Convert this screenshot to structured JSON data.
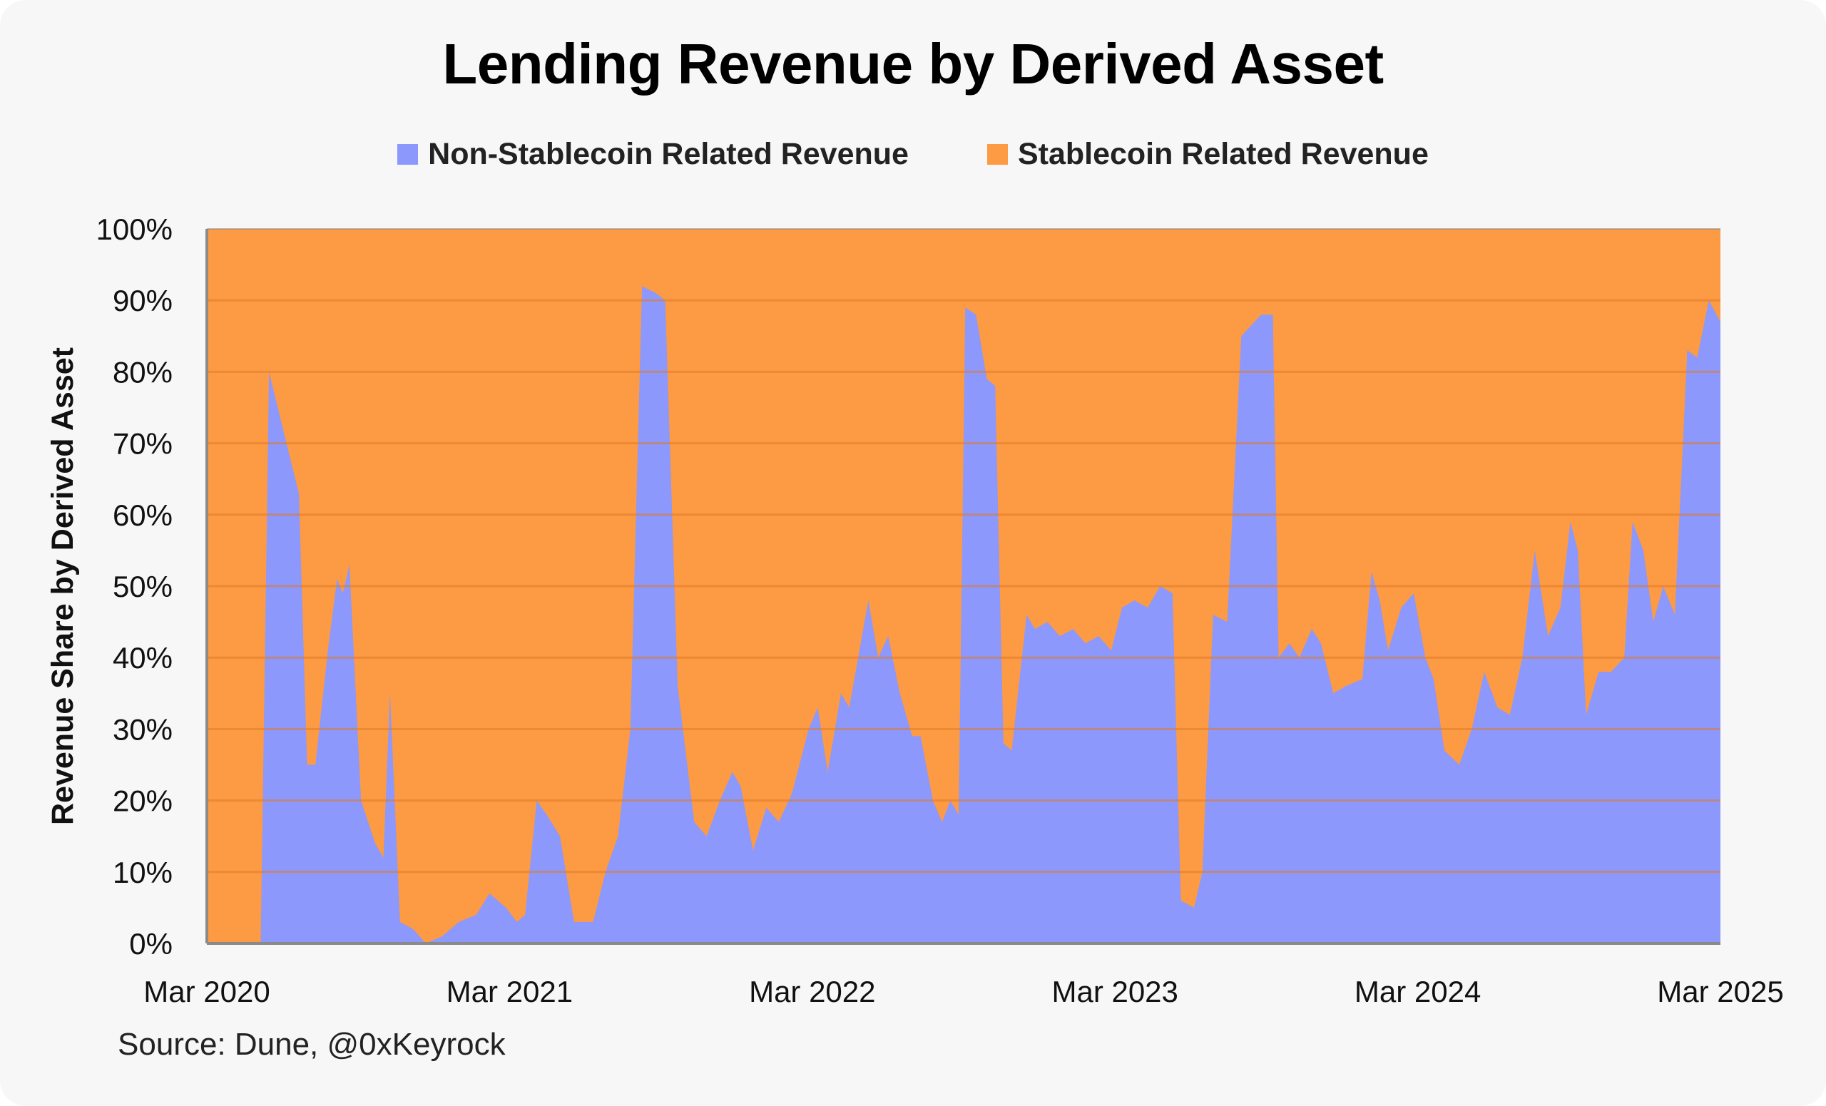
{
  "chart_data": {
    "type": "area",
    "stacked": true,
    "percent": true,
    "title": "Lending Revenue by Derived Asset",
    "ylabel": "Revenue Share by Derived Asset",
    "xlabel": "",
    "source": "Source: Dune, @0xKeyrock",
    "ylim": [
      0,
      100
    ],
    "xlim": [
      "2020-03-01",
      "2025-03-01"
    ],
    "x_ticks": [
      "Mar 2020",
      "Mar 2021",
      "Mar 2022",
      "Mar 2023",
      "Mar 2024",
      "Mar 2025"
    ],
    "y_ticks": [
      "0%",
      "10%",
      "20%",
      "30%",
      "40%",
      "50%",
      "60%",
      "70%",
      "80%",
      "90%",
      "100%"
    ],
    "grid": true,
    "legend_position": "top-center",
    "colors": {
      "non_stablecoin": "#8c98fc",
      "stablecoin": "#fd9a44",
      "grid": "#e07a26",
      "axis": "#8a8a8a"
    },
    "series": [
      {
        "name": "Non-Stablecoin Related Revenue",
        "color": "#8c98fc",
        "points": [
          [
            "2020-03-01",
            0
          ],
          [
            "2020-05-05",
            0
          ],
          [
            "2020-05-15",
            80
          ],
          [
            "2020-06-05",
            70
          ],
          [
            "2020-06-20",
            63
          ],
          [
            "2020-06-30",
            25
          ],
          [
            "2020-07-10",
            25
          ],
          [
            "2020-07-25",
            41
          ],
          [
            "2020-08-05",
            51
          ],
          [
            "2020-08-12",
            49
          ],
          [
            "2020-08-20",
            53
          ],
          [
            "2020-09-03",
            20
          ],
          [
            "2020-09-20",
            14
          ],
          [
            "2020-09-30",
            12
          ],
          [
            "2020-10-08",
            35
          ],
          [
            "2020-10-20",
            3
          ],
          [
            "2020-11-05",
            2
          ],
          [
            "2020-11-20",
            0
          ],
          [
            "2020-12-10",
            1
          ],
          [
            "2020-12-30",
            3
          ],
          [
            "2021-01-20",
            4
          ],
          [
            "2021-02-05",
            7
          ],
          [
            "2021-02-25",
            5
          ],
          [
            "2021-03-10",
            3
          ],
          [
            "2021-03-20",
            4
          ],
          [
            "2021-04-03",
            20
          ],
          [
            "2021-04-15",
            18
          ],
          [
            "2021-05-01",
            15
          ],
          [
            "2021-05-18",
            3
          ],
          [
            "2021-06-10",
            3
          ],
          [
            "2021-06-25",
            10
          ],
          [
            "2021-07-10",
            15
          ],
          [
            "2021-07-25",
            30
          ],
          [
            "2021-08-08",
            92
          ],
          [
            "2021-08-25",
            91
          ],
          [
            "2021-09-05",
            90
          ],
          [
            "2021-09-20",
            36
          ],
          [
            "2021-10-10",
            17
          ],
          [
            "2021-10-25",
            15
          ],
          [
            "2021-11-10",
            20
          ],
          [
            "2021-11-25",
            24
          ],
          [
            "2021-12-05",
            22
          ],
          [
            "2021-12-20",
            13
          ],
          [
            "2022-01-05",
            19
          ],
          [
            "2022-01-20",
            17
          ],
          [
            "2022-02-05",
            21
          ],
          [
            "2022-02-25",
            30
          ],
          [
            "2022-03-08",
            33
          ],
          [
            "2022-03-20",
            24
          ],
          [
            "2022-04-05",
            35
          ],
          [
            "2022-04-15",
            33
          ],
          [
            "2022-05-08",
            48
          ],
          [
            "2022-05-20",
            40
          ],
          [
            "2022-06-01",
            43
          ],
          [
            "2022-06-15",
            35
          ],
          [
            "2022-06-30",
            29
          ],
          [
            "2022-07-10",
            29
          ],
          [
            "2022-07-25",
            20
          ],
          [
            "2022-08-05",
            17
          ],
          [
            "2022-08-15",
            20
          ],
          [
            "2022-08-25",
            18
          ],
          [
            "2022-09-02",
            89
          ],
          [
            "2022-09-15",
            88
          ],
          [
            "2022-09-28",
            79
          ],
          [
            "2022-10-08",
            78
          ],
          [
            "2022-10-18",
            28
          ],
          [
            "2022-10-28",
            27
          ],
          [
            "2022-11-15",
            46
          ],
          [
            "2022-11-25",
            44
          ],
          [
            "2022-12-10",
            45
          ],
          [
            "2022-12-25",
            43
          ],
          [
            "2023-01-10",
            44
          ],
          [
            "2023-01-25",
            42
          ],
          [
            "2023-02-10",
            43
          ],
          [
            "2023-02-25",
            41
          ],
          [
            "2023-03-10",
            47
          ],
          [
            "2023-03-25",
            48
          ],
          [
            "2023-04-10",
            47
          ],
          [
            "2023-04-25",
            50
          ],
          [
            "2023-05-10",
            49
          ],
          [
            "2023-05-20",
            6
          ],
          [
            "2023-06-05",
            5
          ],
          [
            "2023-06-15",
            10
          ],
          [
            "2023-06-28",
            46
          ],
          [
            "2023-07-15",
            45
          ],
          [
            "2023-08-01",
            85
          ],
          [
            "2023-08-25",
            88
          ],
          [
            "2023-09-08",
            88
          ],
          [
            "2023-09-15",
            40
          ],
          [
            "2023-09-28",
            42
          ],
          [
            "2023-10-10",
            40
          ],
          [
            "2023-10-25",
            44
          ],
          [
            "2023-11-05",
            42
          ],
          [
            "2023-11-20",
            35
          ],
          [
            "2023-12-05",
            36
          ],
          [
            "2023-12-25",
            37
          ],
          [
            "2024-01-05",
            52
          ],
          [
            "2024-01-15",
            48
          ],
          [
            "2024-01-25",
            41
          ],
          [
            "2024-02-10",
            47
          ],
          [
            "2024-02-25",
            49
          ],
          [
            "2024-03-10",
            40
          ],
          [
            "2024-03-20",
            37
          ],
          [
            "2024-04-02",
            27
          ],
          [
            "2024-04-20",
            25
          ],
          [
            "2024-05-05",
            30
          ],
          [
            "2024-05-20",
            38
          ],
          [
            "2024-06-05",
            33
          ],
          [
            "2024-06-20",
            32
          ],
          [
            "2024-07-05",
            40
          ],
          [
            "2024-07-20",
            55
          ],
          [
            "2024-08-05",
            43
          ],
          [
            "2024-08-20",
            47
          ],
          [
            "2024-09-01",
            59
          ],
          [
            "2024-09-10",
            55
          ],
          [
            "2024-09-20",
            32
          ],
          [
            "2024-10-05",
            38
          ],
          [
            "2024-10-20",
            38
          ],
          [
            "2024-11-05",
            40
          ],
          [
            "2024-11-15",
            59
          ],
          [
            "2024-11-28",
            55
          ],
          [
            "2024-12-10",
            45
          ],
          [
            "2024-12-22",
            50
          ],
          [
            "2025-01-05",
            46
          ],
          [
            "2025-01-20",
            83
          ],
          [
            "2025-02-01",
            82
          ],
          [
            "2025-02-15",
            90
          ],
          [
            "2025-03-01",
            87
          ]
        ]
      },
      {
        "name": "Stablecoin Related Revenue",
        "color": "#fd9a44"
      }
    ]
  }
}
